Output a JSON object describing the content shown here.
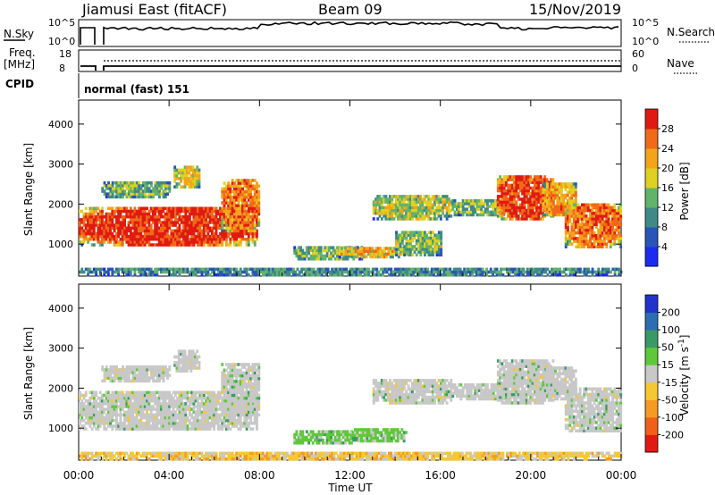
{
  "header": {
    "station": "Jiamusi East (fitACF)",
    "beam": "Beam 09",
    "date": "15/Nov/2019"
  },
  "nsky_panel": {
    "label": "N.Sky",
    "ticks": [
      "10^5",
      "10^0"
    ],
    "right_label": "N.Search",
    "right_ticks": [
      "10^5",
      "10^0"
    ]
  },
  "freq_panel": {
    "label_line1": "Freq.",
    "label_line2": "[MHz]",
    "ticks": [
      "18",
      "8"
    ],
    "right_label": "Nave",
    "right_ticks": [
      "60",
      "0"
    ]
  },
  "cpid": {
    "label": "CPID",
    "mode": "normal (fast) 151"
  },
  "x_axis": {
    "ticks": [
      "00:00",
      "04:00",
      "08:00",
      "12:00",
      "16:00",
      "20:00",
      "00:00"
    ],
    "title": "Time UT"
  },
  "chart_data": [
    {
      "type": "heatmap",
      "parameter": "Power",
      "ylabel": "Slant Range [km]",
      "yticks": [
        1000,
        2000,
        3000,
        4000
      ],
      "ylim": [
        200,
        4600
      ],
      "xlim_hours": [
        0,
        24
      ],
      "colorbar": {
        "label": "Power [dB]",
        "ticks": [
          "4",
          "8",
          "12",
          "16",
          "20",
          "24",
          "28"
        ],
        "colors": [
          "#1a2cf0",
          "#2a55b8",
          "#3f8a86",
          "#62b36a",
          "#e0d020",
          "#f5a31a",
          "#f06a18",
          "#e01a12"
        ]
      },
      "regions": [
        {
          "t0": 0.0,
          "t1": 7.9,
          "r0": 950,
          "r1": 1900,
          "intensity": 0.72
        },
        {
          "t0": 1.0,
          "t1": 4.0,
          "r0": 2150,
          "r1": 2550,
          "intensity": 0.3
        },
        {
          "t0": 4.2,
          "t1": 5.3,
          "r0": 2400,
          "r1": 2900,
          "intensity": 0.45
        },
        {
          "t0": 6.3,
          "t1": 8.0,
          "r0": 1300,
          "r1": 2600,
          "intensity": 0.6
        },
        {
          "t0": 9.5,
          "t1": 12.5,
          "r0": 600,
          "r1": 900,
          "intensity": 0.35
        },
        {
          "t0": 11.5,
          "t1": 14.5,
          "r0": 650,
          "r1": 900,
          "intensity": 0.5
        },
        {
          "t0": 13.0,
          "t1": 16.5,
          "r0": 1600,
          "r1": 2200,
          "intensity": 0.4
        },
        {
          "t0": 14.0,
          "t1": 16.0,
          "r0": 700,
          "r1": 1300,
          "intensity": 0.35
        },
        {
          "t0": 16.5,
          "t1": 19.0,
          "r0": 1700,
          "r1": 2100,
          "intensity": 0.35
        },
        {
          "t0": 18.5,
          "t1": 21.0,
          "r0": 1600,
          "r1": 2700,
          "intensity": 0.7
        },
        {
          "t0": 20.5,
          "t1": 22.0,
          "r0": 1700,
          "r1": 2500,
          "intensity": 0.55
        },
        {
          "t0": 21.5,
          "t1": 24.0,
          "r0": 900,
          "r1": 2000,
          "intensity": 0.62
        },
        {
          "t0": 0.0,
          "t1": 24.0,
          "r0": 200,
          "r1": 380,
          "intensity": 0.25
        }
      ]
    },
    {
      "type": "heatmap",
      "parameter": "Velocity",
      "ylabel": "Slant Range [km]",
      "yticks": [
        1000,
        2000,
        3000,
        4000
      ],
      "ylim": [
        200,
        4600
      ],
      "xlim_hours": [
        0,
        24
      ],
      "colorbar": {
        "label": "Velocity [m s^-1]",
        "ticks": [
          "200",
          "100",
          "50",
          "15",
          "-15",
          "-50",
          "-100",
          "-200"
        ],
        "colors": [
          "#2233cc",
          "#2c6fb0",
          "#3a9a66",
          "#5fc83a",
          "#c8c8c8",
          "#f5c830",
          "#f59a22",
          "#f06018",
          "#e01a12"
        ]
      },
      "regions": [
        {
          "t0": 0.0,
          "t1": 7.9,
          "r0": 950,
          "r1": 1900,
          "dominant": "gray"
        },
        {
          "t0": 1.0,
          "t1": 4.0,
          "r0": 2150,
          "r1": 2550,
          "dominant": "gray"
        },
        {
          "t0": 4.2,
          "t1": 5.3,
          "r0": 2400,
          "r1": 2900,
          "dominant": "gray"
        },
        {
          "t0": 6.3,
          "t1": 8.0,
          "r0": 1300,
          "r1": 2600,
          "dominant": "gray"
        },
        {
          "t0": 9.5,
          "t1": 12.5,
          "r0": 600,
          "r1": 900,
          "dominant": "green"
        },
        {
          "t0": 12.0,
          "t1": 14.5,
          "r0": 650,
          "r1": 950,
          "dominant": "green"
        },
        {
          "t0": 13.0,
          "t1": 16.5,
          "r0": 1600,
          "r1": 2200,
          "dominant": "gray"
        },
        {
          "t0": 16.5,
          "t1": 19.0,
          "r0": 1700,
          "r1": 2100,
          "dominant": "gray"
        },
        {
          "t0": 18.5,
          "t1": 21.0,
          "r0": 1600,
          "r1": 2700,
          "dominant": "gray"
        },
        {
          "t0": 20.5,
          "t1": 22.0,
          "r0": 1700,
          "r1": 2500,
          "dominant": "gray"
        },
        {
          "t0": 21.5,
          "t1": 24.0,
          "r0": 900,
          "r1": 2000,
          "dominant": "gray"
        },
        {
          "t0": 0.0,
          "t1": 24.0,
          "r0": 200,
          "r1": 380,
          "dominant": "orange"
        }
      ]
    }
  ]
}
